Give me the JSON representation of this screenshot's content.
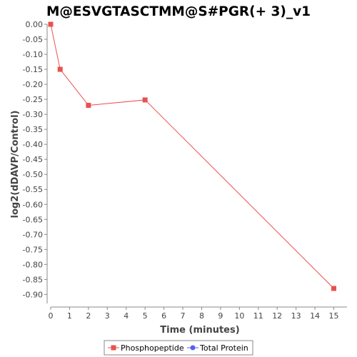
{
  "chart_data": {
    "type": "line",
    "title": "M@ESVGTASCTMM@S#PGR(+ 3)_v1",
    "xlabel": "Time (minutes)",
    "ylabel": "log2(dDAVP/Control)",
    "xlim": [
      0,
      15.7
    ],
    "ylim": [
      -0.93,
      0.0
    ],
    "x_ticks": [
      0,
      1,
      2,
      3,
      4,
      5,
      6,
      7,
      8,
      9,
      10,
      11,
      12,
      13,
      14,
      15
    ],
    "y_ticks": [
      0.0,
      -0.05,
      -0.1,
      -0.15,
      -0.2,
      -0.25,
      -0.3,
      -0.35,
      -0.4,
      -0.45,
      -0.5,
      -0.55,
      -0.6,
      -0.65,
      -0.7,
      -0.75,
      -0.8,
      -0.85,
      -0.9
    ],
    "y_tick_labels": [
      "0.00",
      "-0.05",
      "-0.10",
      "-0.15",
      "-0.20",
      "-0.25",
      "-0.30",
      "-0.35",
      "-0.40",
      "-0.45",
      "-0.50",
      "-0.55",
      "-0.60",
      "-0.65",
      "-0.70",
      "-0.75",
      "-0.80",
      "-0.85",
      "-0.90"
    ],
    "grid": false,
    "legend_position": "bottom",
    "series": [
      {
        "name": "Phosphopeptide",
        "color": "#e8514f",
        "marker": "square",
        "x": [
          0,
          0.5,
          2,
          5,
          15
        ],
        "y": [
          0.0,
          -0.15,
          -0.27,
          -0.252,
          -0.88
        ]
      },
      {
        "name": "Total Protein",
        "color": "#5563e8",
        "marker": "circle",
        "x": [],
        "y": []
      }
    ]
  }
}
